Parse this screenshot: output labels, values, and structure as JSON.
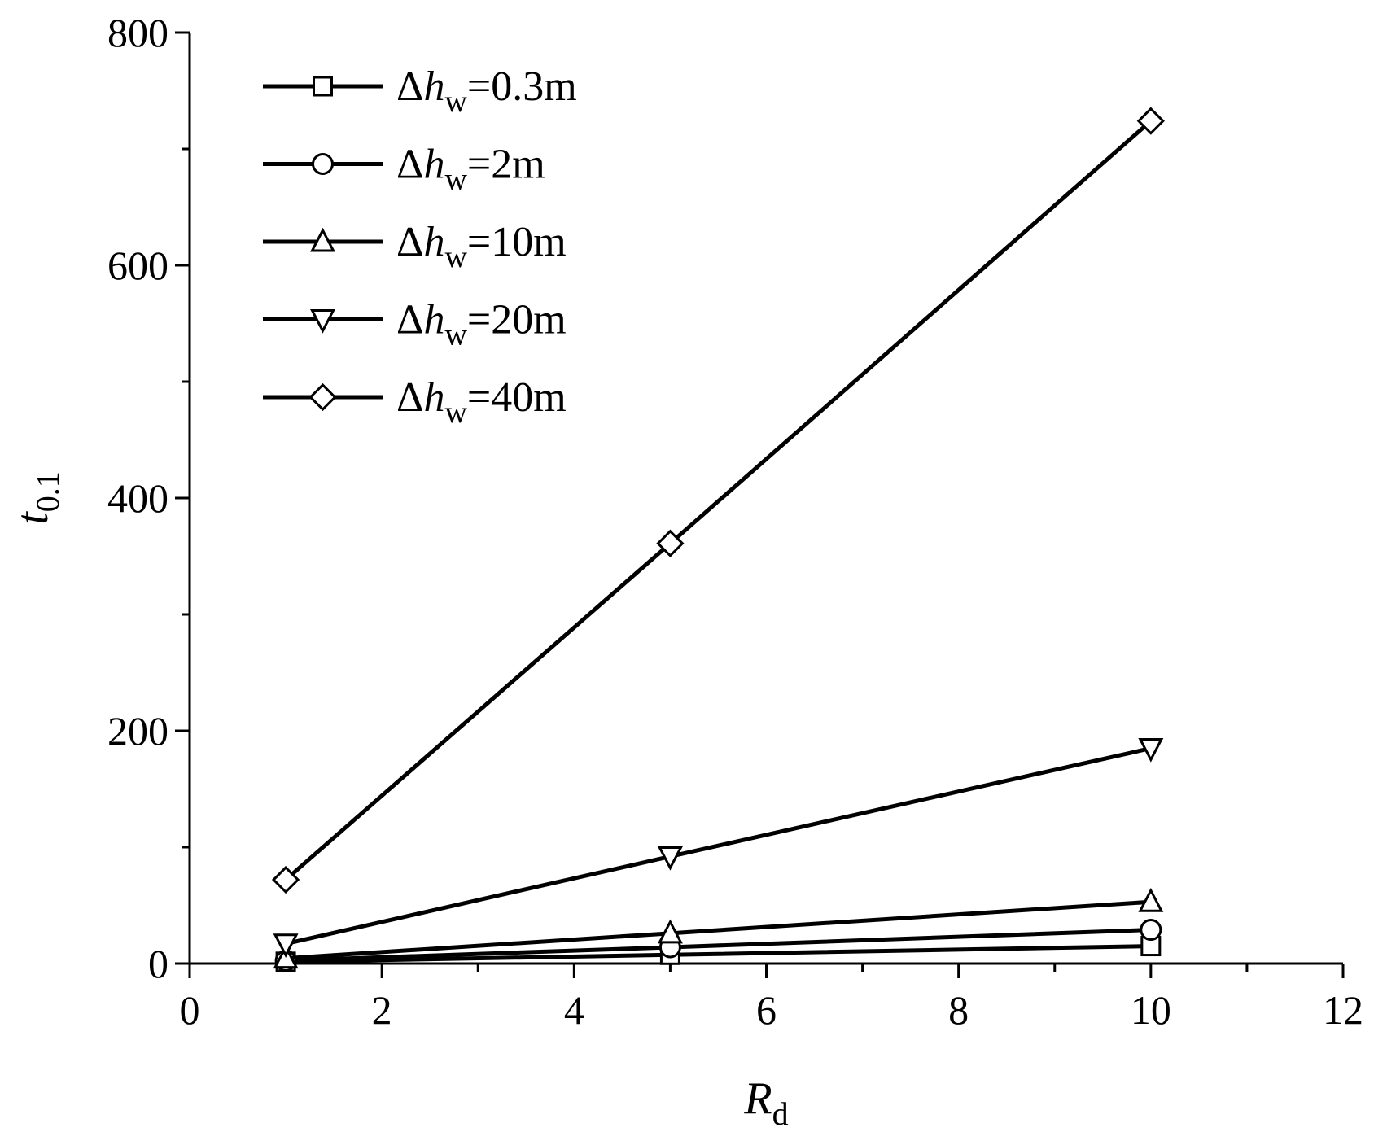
{
  "chart_data": {
    "type": "line",
    "x_axis": {
      "label_main": "R",
      "label_sub": "d",
      "range": [
        0,
        12
      ],
      "ticks": [
        "0",
        "2",
        "4",
        "6",
        "8",
        "10",
        "12"
      ],
      "tick_values": [
        0,
        2,
        4,
        6,
        8,
        10,
        12
      ],
      "minor_tick_values": [
        1,
        3,
        5,
        7,
        9,
        11
      ]
    },
    "y_axis": {
      "label_main": "t",
      "label_sub": "0.1",
      "range": [
        0,
        800
      ],
      "ticks": [
        "0",
        "200",
        "400",
        "600",
        "800"
      ],
      "tick_values": [
        0,
        200,
        400,
        600,
        800
      ],
      "minor_tick_values": [
        100,
        300,
        500,
        700
      ]
    },
    "legend_position": "top-left",
    "x": [
      1,
      5,
      10
    ],
    "series": [
      {
        "name": "Δhw=0.3m",
        "legend_prefix": "Δ",
        "legend_var": "h",
        "legend_sub": "w",
        "legend_suffix": "=0.3m",
        "marker": "square",
        "values": [
          1.5,
          7.5,
          15
        ]
      },
      {
        "name": "Δhw=2m",
        "legend_prefix": "Δ",
        "legend_var": "h",
        "legend_sub": "w",
        "legend_suffix": "=2m",
        "marker": "circle",
        "values": [
          2.5,
          14,
          29
        ]
      },
      {
        "name": "Δhw=10m",
        "legend_prefix": "Δ",
        "legend_var": "h",
        "legend_sub": "w",
        "legend_suffix": "=10m",
        "marker": "triangle-up",
        "values": [
          4.5,
          26,
          53
        ]
      },
      {
        "name": "Δhw=20m",
        "legend_prefix": "Δ",
        "legend_var": "h",
        "legend_sub": "w",
        "legend_suffix": "=20m",
        "marker": "triangle-down",
        "values": [
          17,
          92,
          185
        ]
      },
      {
        "name": "Δhw=40m",
        "legend_prefix": "Δ",
        "legend_var": "h",
        "legend_sub": "w",
        "legend_suffix": "=40m",
        "marker": "diamond",
        "values": [
          72,
          361,
          724
        ]
      }
    ]
  }
}
